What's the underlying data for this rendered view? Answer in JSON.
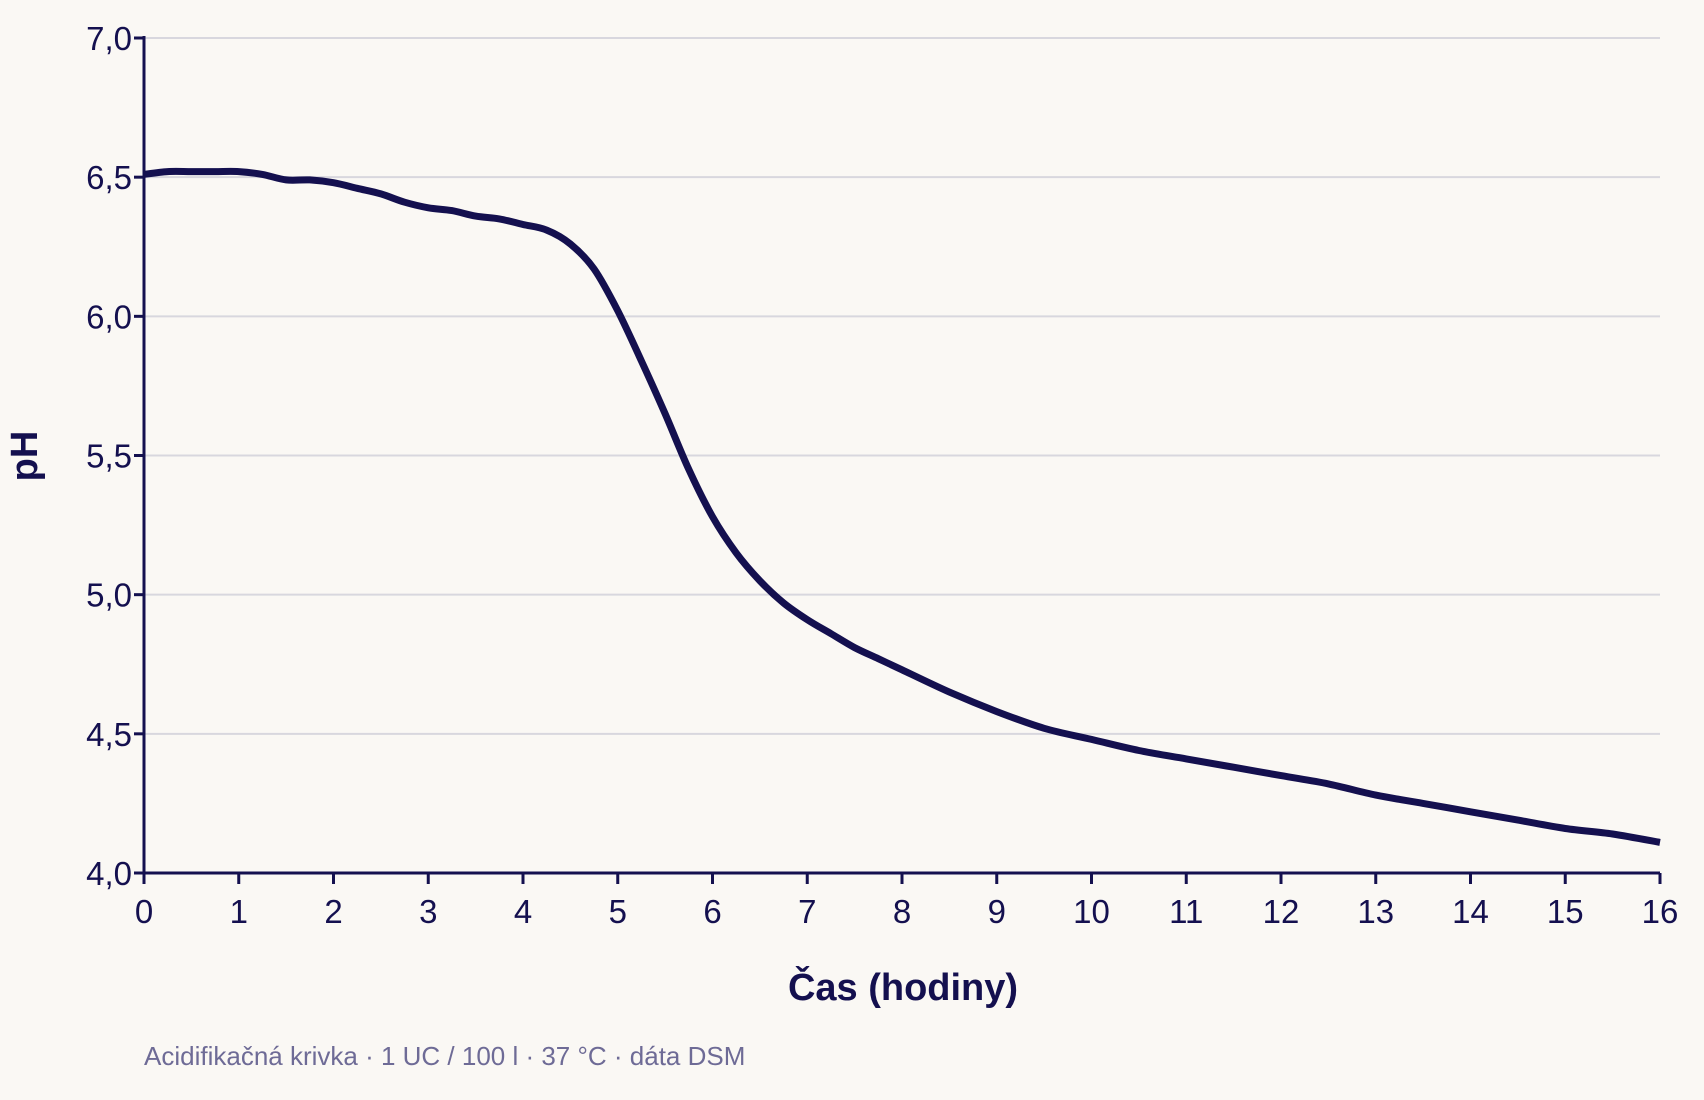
{
  "colors": {
    "background": "#faf8f4",
    "line": "#14104f",
    "axis": "#14104f",
    "grid": "#d8d7de",
    "caption": "#6e6b96"
  },
  "caption": "Acidifikačná krivka · 1 UC / 100 l · 37 °C · dáta DSM",
  "chart_data": {
    "type": "line",
    "xlabel": "Čas (hodiny)",
    "ylabel": "pH",
    "xlim": [
      0,
      16
    ],
    "ylim": [
      4.0,
      7.0
    ],
    "grid": "horizontal",
    "xticks": [
      "0",
      "1",
      "2",
      "3",
      "4",
      "5",
      "6",
      "7",
      "8",
      "9",
      "10",
      "11",
      "12",
      "13",
      "14",
      "15",
      "16"
    ],
    "yticks": [
      "4,0",
      "4,5",
      "5,0",
      "5,5",
      "6,0",
      "6,5",
      "7,0"
    ],
    "series": [
      {
        "x": [
          0,
          0.25,
          0.5,
          0.75,
          1,
          1.25,
          1.5,
          1.75,
          2,
          2.25,
          2.5,
          2.75,
          3,
          3.25,
          3.5,
          3.75,
          4,
          4.25,
          4.5,
          4.75,
          5,
          5.25,
          5.5,
          5.75,
          6,
          6.25,
          6.5,
          6.75,
          7,
          7.25,
          7.5,
          7.75,
          8,
          8.5,
          9,
          9.5,
          10,
          10.5,
          11,
          11.5,
          12,
          12.5,
          13,
          13.5,
          14,
          14.5,
          15,
          15.5,
          16
        ],
        "y": [
          6.51,
          6.52,
          6.52,
          6.52,
          6.52,
          6.51,
          6.49,
          6.49,
          6.48,
          6.46,
          6.44,
          6.41,
          6.39,
          6.38,
          6.36,
          6.35,
          6.33,
          6.31,
          6.26,
          6.17,
          6.02,
          5.84,
          5.65,
          5.45,
          5.28,
          5.15,
          5.05,
          4.97,
          4.91,
          4.86,
          4.81,
          4.77,
          4.73,
          4.65,
          4.58,
          4.52,
          4.48,
          4.44,
          4.41,
          4.38,
          4.35,
          4.32,
          4.28,
          4.25,
          4.22,
          4.19,
          4.16,
          4.14,
          4.11
        ]
      }
    ]
  }
}
